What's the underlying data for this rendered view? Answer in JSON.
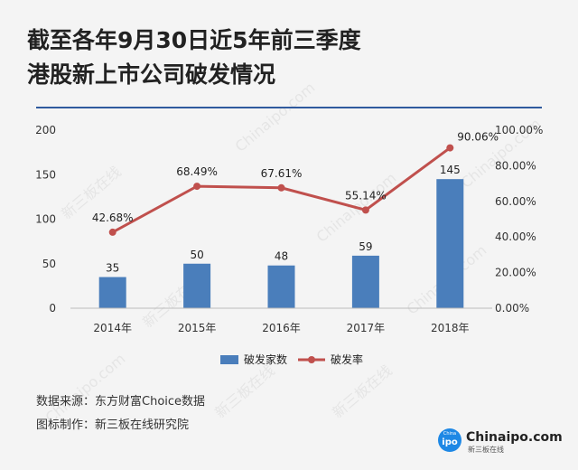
{
  "title_lines": [
    "截至各年9月30日近5年前三季度",
    "港股新上市公司破发情况"
  ],
  "chart_data": {
    "type": "bar+line",
    "title": "截至各年9月30日近5年前三季度港股新上市公司破发情况",
    "categories": [
      "2014年",
      "2015年",
      "2016年",
      "2017年",
      "2018年"
    ],
    "series": [
      {
        "name": "破发家数",
        "type": "bar",
        "axis": "left",
        "values": [
          35,
          50,
          48,
          59,
          145
        ],
        "labels": [
          "35",
          "50",
          "48",
          "59",
          "145"
        ],
        "color": "#4a7ebb"
      },
      {
        "name": "破发率",
        "type": "line",
        "axis": "right",
        "values": [
          42.68,
          68.49,
          67.61,
          55.14,
          90.06
        ],
        "labels": [
          "42.68%",
          "68.49%",
          "67.61%",
          "55.14%",
          "90.06%"
        ],
        "color": "#c0504d"
      }
    ],
    "y_left": {
      "min": 0,
      "max": 200,
      "ticks": [
        0,
        50,
        100,
        150,
        200
      ],
      "tick_labels": [
        "0",
        "50",
        "100",
        "150",
        "200"
      ]
    },
    "y_right": {
      "min": 0,
      "max": 100,
      "ticks": [
        0,
        20,
        40,
        60,
        80,
        100
      ],
      "tick_labels": [
        "0.00%",
        "20.00%",
        "40.00%",
        "60.00%",
        "80.00%",
        "100.00%"
      ]
    },
    "legend": {
      "position": "bottom",
      "items": [
        "破发家数",
        "破发率"
      ]
    },
    "grid": false
  },
  "footer": {
    "source": "数据来源：东方财富Choice数据",
    "maker": "图标制作：新三板在线研究院"
  },
  "logo": {
    "text": "Chinaipo.com",
    "sub": "新三板在线",
    "badge": "ipo",
    "badge_top": "China",
    "color": "#1e88e5"
  },
  "watermark_text": "新三板在线",
  "watermark_text_en": "Chinaipo.com"
}
